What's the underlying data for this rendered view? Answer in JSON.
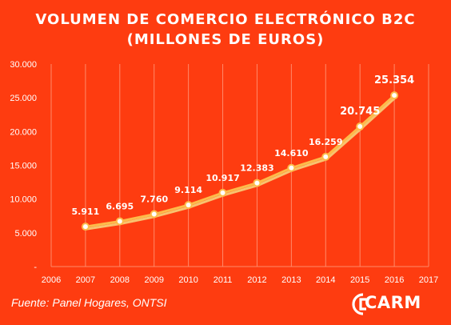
{
  "chart_data": {
    "type": "line",
    "title": "VOLUMEN  DE COMERCIO  ELECTRÓNICO  B2C",
    "subtitle": "(MILLONES  DE EUROS)",
    "x_ticks": [
      "2006",
      "2007",
      "2008",
      "2009",
      "2010",
      "2011",
      "2012",
      "2013",
      "2014",
      "2015",
      "2016",
      "2017"
    ],
    "y_ticks": [
      "-",
      "5.000",
      "10.000",
      "15.000",
      "20.000",
      "25.000",
      "30.000"
    ],
    "ylim": [
      0,
      30000
    ],
    "xlim": [
      2006,
      2017
    ],
    "grid": "vertical",
    "series": [
      {
        "x": [
          2007,
          2008,
          2009,
          2010,
          2011,
          2012,
          2013,
          2014,
          2015,
          2016
        ],
        "values": [
          5911,
          6695,
          7760,
          9114,
          10917,
          12383,
          14610,
          16259,
          20745,
          25354
        ],
        "labels": [
          "5.911",
          "6.695",
          "7.760",
          "9.114",
          "10.917",
          "12.383",
          "14.610",
          "16.259",
          "20.745",
          "25.354"
        ]
      }
    ],
    "colors": {
      "background": "#fe3c10",
      "line": "#fdbb4a",
      "line_shadow": "#f7d27a",
      "grid": "#ff8a6a",
      "text": "#ffffff"
    }
  },
  "footer": {
    "source": "Fuente: Panel Hogares, ONTSI",
    "logo_text": "CARM"
  }
}
